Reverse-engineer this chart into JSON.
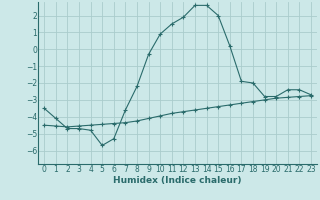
{
  "xlabel": "Humidex (Indice chaleur)",
  "bg_color": "#cce8e8",
  "grid_color": "#aacccc",
  "line_color": "#2a6b6b",
  "xlim": [
    -0.5,
    23.5
  ],
  "ylim": [
    -6.8,
    2.8
  ],
  "yticks": [
    2,
    1,
    0,
    -1,
    -2,
    -3,
    -4,
    -5,
    -6
  ],
  "xticks": [
    0,
    1,
    2,
    3,
    4,
    5,
    6,
    7,
    8,
    9,
    10,
    11,
    12,
    13,
    14,
    15,
    16,
    17,
    18,
    19,
    20,
    21,
    22,
    23
  ],
  "curve1_x": [
    0,
    1,
    2,
    3,
    4,
    5,
    6,
    7,
    8,
    9,
    10,
    11,
    12,
    13,
    14,
    15,
    16,
    17,
    18,
    19,
    20,
    21,
    22,
    23
  ],
  "curve1_y": [
    -3.5,
    -4.1,
    -4.7,
    -4.7,
    -4.8,
    -5.7,
    -5.3,
    -3.6,
    -2.2,
    -0.3,
    0.9,
    1.5,
    1.9,
    2.6,
    2.6,
    2.0,
    0.2,
    -1.9,
    -2.0,
    -2.8,
    -2.8,
    -2.4,
    -2.4,
    -2.7
  ],
  "curve2_x": [
    0,
    1,
    2,
    3,
    4,
    5,
    6,
    7,
    8,
    9,
    10,
    11,
    12,
    13,
    14,
    15,
    16,
    17,
    18,
    19,
    20,
    21,
    22,
    23
  ],
  "curve2_y": [
    -4.5,
    -4.55,
    -4.6,
    -4.55,
    -4.5,
    -4.45,
    -4.4,
    -4.35,
    -4.25,
    -4.1,
    -3.95,
    -3.8,
    -3.7,
    -3.6,
    -3.5,
    -3.4,
    -3.3,
    -3.2,
    -3.1,
    -3.0,
    -2.9,
    -2.85,
    -2.8,
    -2.75
  ],
  "tick_fontsize": 5.5,
  "xlabel_fontsize": 6.5
}
